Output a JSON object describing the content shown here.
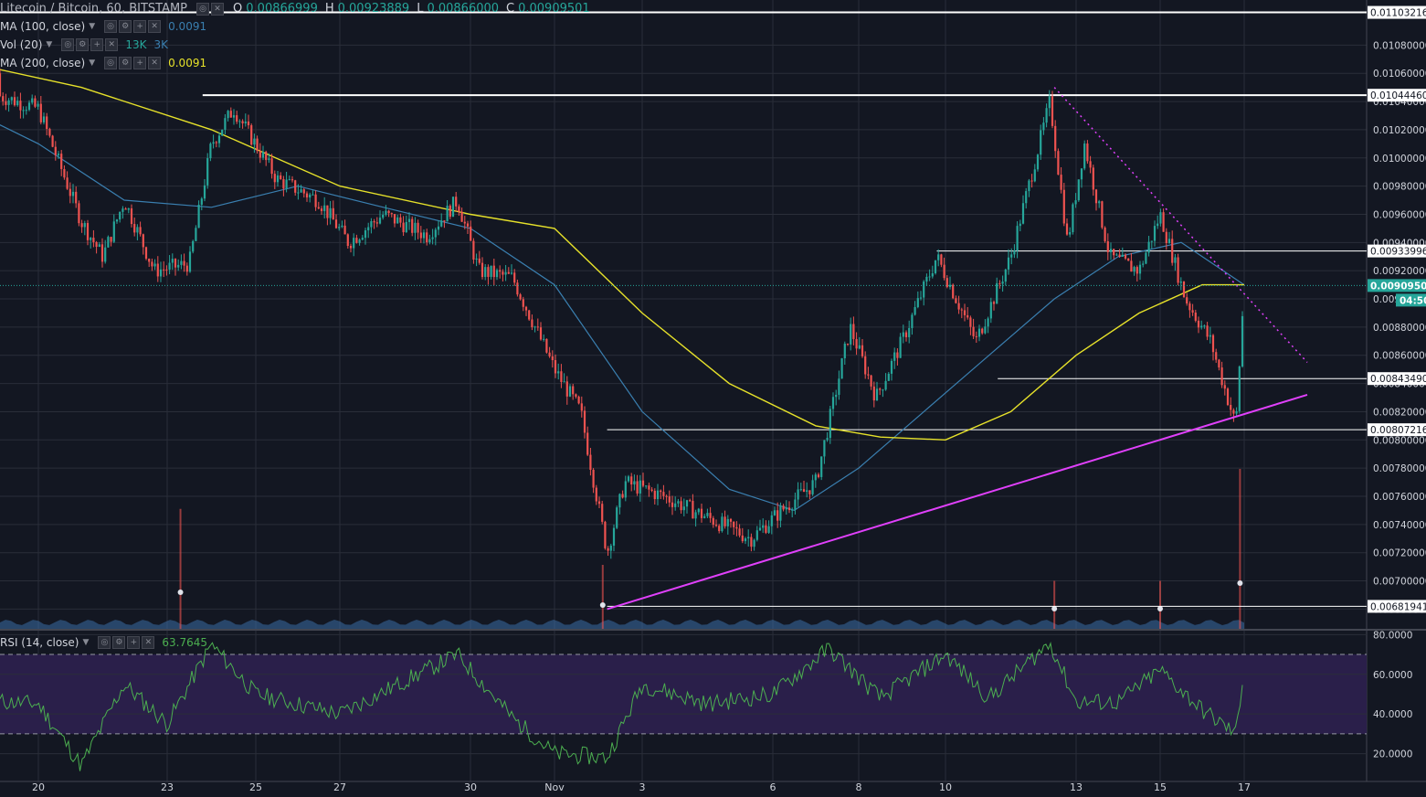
{
  "header": {
    "symbol": "Litecoin / Bitcoin, 60, BITSTAMP",
    "ohlc": [
      {
        "key": "O",
        "value": "0.00866999"
      },
      {
        "key": "H",
        "value": "0.00923889"
      },
      {
        "key": "L",
        "value": "0.00866000"
      },
      {
        "key": "C",
        "value": "0.00909501"
      }
    ]
  },
  "indicators": {
    "ma100": {
      "label": "MA (100, close)",
      "value": "0.0091",
      "color": "#3a7fb0"
    },
    "vol": {
      "label": "Vol (20)",
      "v1": "13K",
      "v2": "3K",
      "v1_color": "#26a69a",
      "v2_color": "#3a7fb0"
    },
    "ma200": {
      "label": "MA (200, close)",
      "value": "0.0091",
      "color": "#e6e12a"
    },
    "rsi": {
      "label": "RSI (14, close)",
      "value": "63.7645",
      "color": "#4caf50"
    }
  },
  "colors": {
    "background": "#131722",
    "grid": "#2a2e39",
    "up": "#26a69a",
    "down": "#ef5350",
    "trendline": "#e040fb",
    "rsi_band": "#2a1f4a",
    "volume": "#3a6ea5",
    "text": "#d1d4dc"
  },
  "chart_data": [
    {
      "type": "candlestick",
      "title": "Litecoin / Bitcoin, 60, BITSTAMP",
      "x_tick_labels": [
        "20",
        "23",
        "25",
        "27",
        "30",
        "Nov",
        "3",
        "6",
        "8",
        "10",
        "13",
        "15",
        "17"
      ],
      "y_tick_labels": [
        "0.01080000",
        "0.01060000",
        "0.01040000",
        "0.01020000",
        "0.01000000",
        "0.00980000",
        "0.00960000",
        "0.00940000",
        "0.00920000",
        "0.00900000",
        "0.00880000",
        "0.00860000",
        "0.00840000",
        "0.00820000",
        "0.00800000",
        "0.00780000",
        "0.00760000",
        "0.00740000",
        "0.00720000",
        "0.00700000",
        "0.00680000"
      ],
      "y_range": [
        0.00666,
        0.01112
      ],
      "last_price": "0.00909501",
      "countdown": "04:50",
      "price_path": [
        {
          "x": "Oct 18",
          "y": 0.0106
        },
        {
          "x": "Oct 19",
          "y": 0.01045
        },
        {
          "x": "Oct 20",
          "y": 0.01035
        },
        {
          "x": "Oct 21",
          "y": 0.00955
        },
        {
          "x": "Oct 21.5",
          "y": 0.0093
        },
        {
          "x": "Oct 22",
          "y": 0.0097
        },
        {
          "x": "Oct 22.7",
          "y": 0.0092
        },
        {
          "x": "Oct 23.5",
          "y": 0.00925
        },
        {
          "x": "Oct 24",
          "y": 0.0101
        },
        {
          "x": "Oct 24.5",
          "y": 0.01035
        },
        {
          "x": "Oct 25.5",
          "y": 0.00985
        },
        {
          "x": "Oct 26.5",
          "y": 0.0097
        },
        {
          "x": "Oct 27.2",
          "y": 0.0094
        },
        {
          "x": "Oct 28",
          "y": 0.0096
        },
        {
          "x": "Oct 29",
          "y": 0.00945
        },
        {
          "x": "Oct 29.7",
          "y": 0.0097
        },
        {
          "x": "Oct 30.2",
          "y": 0.0092
        },
        {
          "x": "Oct 31",
          "y": 0.00915
        },
        {
          "x": "Nov 1",
          "y": 0.0085
        },
        {
          "x": "Nov 1.6",
          "y": 0.0082
        },
        {
          "x": "Nov 2.2",
          "y": 0.0072
        },
        {
          "x": "Nov 2.6",
          "y": 0.0077
        },
        {
          "x": "Nov 3.5",
          "y": 0.0076
        },
        {
          "x": "Nov 4.5",
          "y": 0.00745
        },
        {
          "x": "Nov 5.5",
          "y": 0.0073
        },
        {
          "x": "Nov 6.2",
          "y": 0.0075
        },
        {
          "x": "Nov 7",
          "y": 0.0077
        },
        {
          "x": "Nov 7.8",
          "y": 0.0088
        },
        {
          "x": "Nov 8.4",
          "y": 0.0083
        },
        {
          "x": "Nov 9",
          "y": 0.0087
        },
        {
          "x": "Nov 9.8",
          "y": 0.0093
        },
        {
          "x": "Nov 10.7",
          "y": 0.0087
        },
        {
          "x": "Nov 11.5",
          "y": 0.0093
        },
        {
          "x": "Nov 12.4",
          "y": 0.0104
        },
        {
          "x": "Nov 12.8",
          "y": 0.0094
        },
        {
          "x": "Nov 13.2",
          "y": 0.0101
        },
        {
          "x": "Nov 13.8",
          "y": 0.0093
        },
        {
          "x": "Nov 14.5",
          "y": 0.0092
        },
        {
          "x": "Nov 15",
          "y": 0.0096
        },
        {
          "x": "Nov 15.6",
          "y": 0.009
        },
        {
          "x": "Nov 16.2",
          "y": 0.0087
        },
        {
          "x": "Nov 16.6",
          "y": 0.0083
        },
        {
          "x": "Nov 16.8",
          "y": 0.0081
        },
        {
          "x": "Nov 17",
          "y": 0.00909
        }
      ],
      "ma100": [
        {
          "x": "Oct 18",
          "y": 0.0104
        },
        {
          "x": "Oct 20",
          "y": 0.0101
        },
        {
          "x": "Oct 22",
          "y": 0.0097
        },
        {
          "x": "Oct 24",
          "y": 0.00965
        },
        {
          "x": "Oct 26",
          "y": 0.0098
        },
        {
          "x": "Oct 28",
          "y": 0.00965
        },
        {
          "x": "Oct 30",
          "y": 0.0095
        },
        {
          "x": "Nov 1",
          "y": 0.0091
        },
        {
          "x": "Nov 3",
          "y": 0.0082
        },
        {
          "x": "Nov 5",
          "y": 0.00765
        },
        {
          "x": "Nov 6.5",
          "y": 0.0075
        },
        {
          "x": "Nov 8",
          "y": 0.0078
        },
        {
          "x": "Nov 9.5",
          "y": 0.0082
        },
        {
          "x": "Nov 11",
          "y": 0.0086
        },
        {
          "x": "Nov 12.5",
          "y": 0.009
        },
        {
          "x": "Nov 14",
          "y": 0.0093
        },
        {
          "x": "Nov 15.5",
          "y": 0.0094
        },
        {
          "x": "Nov 17",
          "y": 0.0091
        }
      ],
      "ma200": [
        {
          "x": "Oct 18",
          "y": 0.0107
        },
        {
          "x": "Oct 21",
          "y": 0.0105
        },
        {
          "x": "Oct 24",
          "y": 0.0102
        },
        {
          "x": "Oct 27",
          "y": 0.0098
        },
        {
          "x": "Oct 30",
          "y": 0.0096
        },
        {
          "x": "Nov 1",
          "y": 0.0095
        },
        {
          "x": "Nov 3",
          "y": 0.0089
        },
        {
          "x": "Nov 5",
          "y": 0.0084
        },
        {
          "x": "Nov 7",
          "y": 0.0081
        },
        {
          "x": "Nov 8.5",
          "y": 0.00802
        },
        {
          "x": "Nov 10",
          "y": 0.008
        },
        {
          "x": "Nov 11.5",
          "y": 0.0082
        },
        {
          "x": "Nov 13",
          "y": 0.0086
        },
        {
          "x": "Nov 14.5",
          "y": 0.0089
        },
        {
          "x": "Nov 16",
          "y": 0.0091
        },
        {
          "x": "Nov 17",
          "y": 0.0091
        }
      ],
      "levels": [
        {
          "label": "0.01103216",
          "value": 0.01103216,
          "from": "Oct 18"
        },
        {
          "label": "0.01044460",
          "value": 0.0104446,
          "from": "Oct 23.8"
        },
        {
          "label": "0.00933996",
          "value": 0.00933996,
          "from": "Nov 9.8"
        },
        {
          "label": "0.00843490",
          "value": 0.0084349,
          "from": "Nov 11.2"
        },
        {
          "label": "0.00807216",
          "value": 0.00807216,
          "from": "Nov 2.2"
        },
        {
          "label": "0.00681941",
          "value": 0.00681941,
          "from": "Nov 2.2"
        }
      ],
      "trendlines": [
        {
          "style": "solid",
          "from": {
            "x": "Nov 2.2",
            "y": 0.0068
          },
          "to": {
            "x": "Nov 18.5",
            "y": 0.00832
          }
        },
        {
          "style": "dotted",
          "from": {
            "x": "Nov 12.5",
            "y": 0.0105
          },
          "to": {
            "x": "Nov 18.5",
            "y": 0.00855
          }
        }
      ],
      "volume_spikes": [
        {
          "x": "Oct 23.3",
          "v": 0.75
        },
        {
          "x": "Nov 2.1",
          "v": 0.4
        },
        {
          "x": "Nov 12.5",
          "v": 0.3
        },
        {
          "x": "Nov 15",
          "v": 0.3
        },
        {
          "x": "Nov 16.9",
          "v": 1.0
        }
      ]
    },
    {
      "type": "line",
      "title": "RSI (14, close)",
      "y_tick_labels": [
        "80.0000",
        "60.0000",
        "40.0000",
        "20.0000"
      ],
      "y_range": [
        6,
        82
      ],
      "bands": [
        30,
        70
      ],
      "last_value": "63.7645",
      "values": [
        {
          "x": "Oct 18",
          "y": 48
        },
        {
          "x": "Oct 20",
          "y": 45
        },
        {
          "x": "Oct 21",
          "y": 14
        },
        {
          "x": "Oct 22",
          "y": 55
        },
        {
          "x": "Oct 23",
          "y": 35
        },
        {
          "x": "Oct 24",
          "y": 75
        },
        {
          "x": "Oct 25",
          "y": 50
        },
        {
          "x": "Oct 27",
          "y": 40
        },
        {
          "x": "Oct 29.7",
          "y": 70
        },
        {
          "x": "Oct 31",
          "y": 38
        },
        {
          "x": "Nov 1",
          "y": 20
        },
        {
          "x": "Nov 2.2",
          "y": 18
        },
        {
          "x": "Nov 3",
          "y": 55
        },
        {
          "x": "Nov 4.5",
          "y": 45
        },
        {
          "x": "Nov 6",
          "y": 50
        },
        {
          "x": "Nov 7.3",
          "y": 73
        },
        {
          "x": "Nov 8.5",
          "y": 48
        },
        {
          "x": "Nov 10",
          "y": 70
        },
        {
          "x": "Nov 11",
          "y": 48
        },
        {
          "x": "Nov 12.4",
          "y": 76
        },
        {
          "x": "Nov 13",
          "y": 46
        },
        {
          "x": "Nov 14",
          "y": 46
        },
        {
          "x": "Nov 15",
          "y": 62
        },
        {
          "x": "Nov 16",
          "y": 42
        },
        {
          "x": "Nov 16.8",
          "y": 30
        },
        {
          "x": "Nov 17",
          "y": 63.76
        }
      ]
    }
  ]
}
